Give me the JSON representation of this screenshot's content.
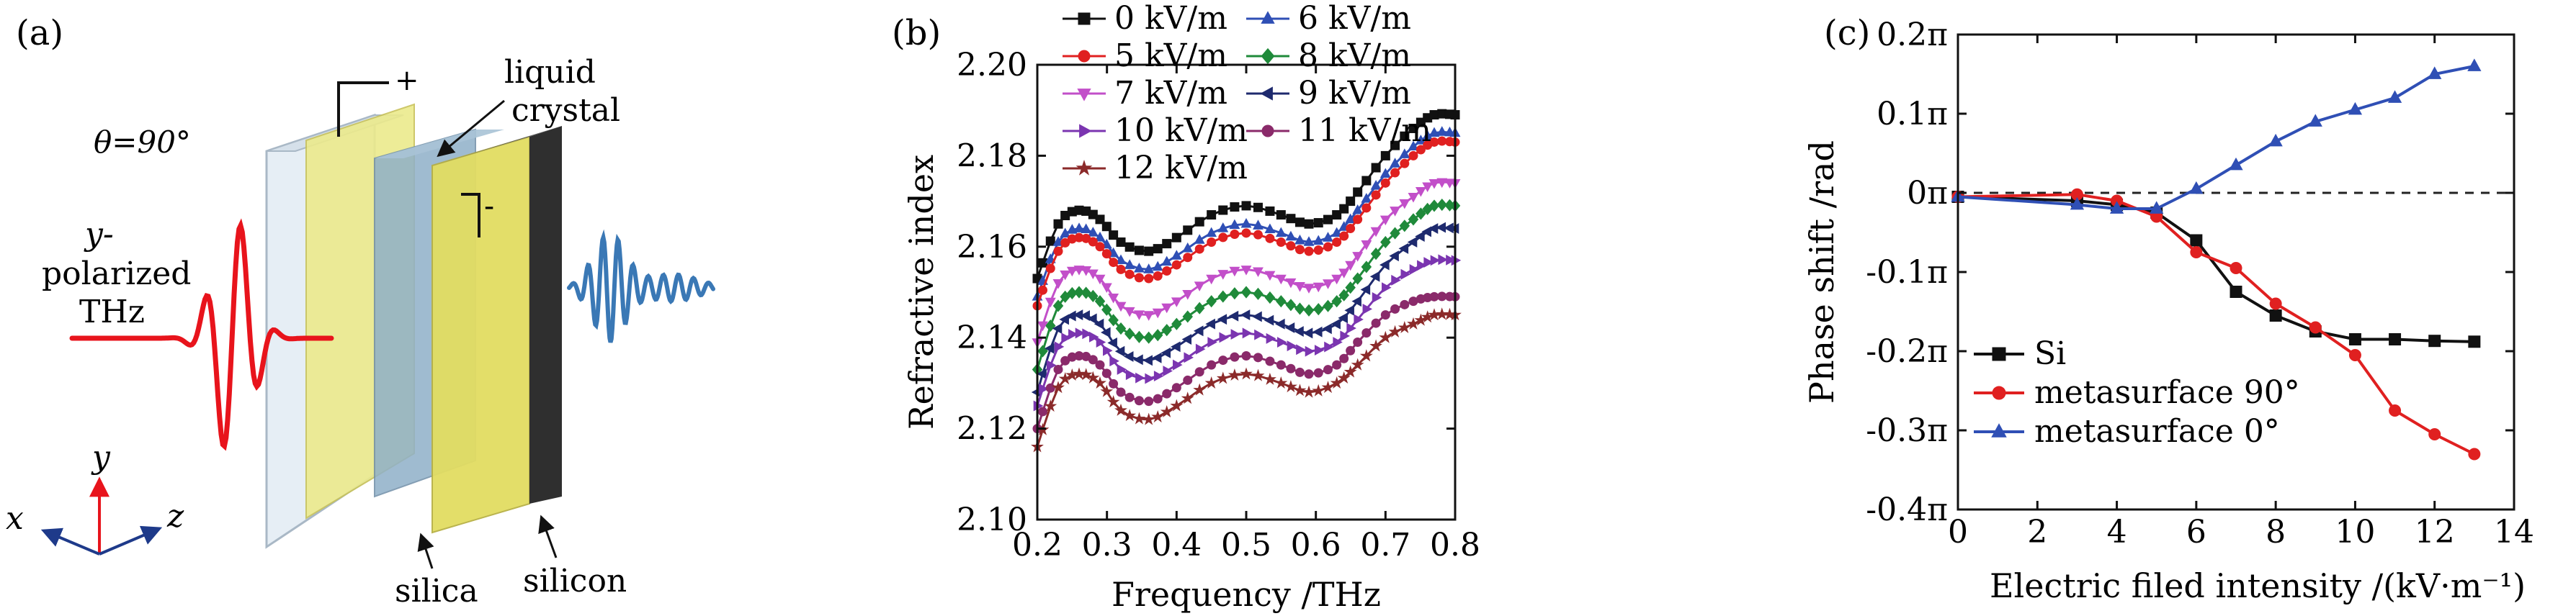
{
  "panels": {
    "a": {
      "label": "(a)",
      "theta_label": "θ=90°",
      "y_label_1": "y-",
      "y_label_2": "polarized",
      "y_label_3": "THz",
      "plus": "+",
      "minus": "-",
      "lc_label_1": "liquid",
      "lc_label_2": "crystal",
      "silica": "silica",
      "silicon": "silicon",
      "axis_x": "x",
      "axis_y": "y",
      "axis_z": "z",
      "colors": {
        "incident_wave": "#e8141c",
        "transmitted_wave": "#3a78b5",
        "electrode": "#e9e36a",
        "lc": "#8fb0c8",
        "silicon": "#3b3b3b"
      }
    },
    "b": {
      "label": "(b)"
    },
    "c": {
      "label": "(c)"
    }
  },
  "chart_data": [
    {
      "type": "line",
      "panel": "b",
      "xlabel": "Frequency /THz",
      "ylabel": "Refractive index",
      "xlim": [
        0.2,
        0.8
      ],
      "ylim": [
        2.1,
        2.2
      ],
      "xticks": [
        "0.2",
        "0.3",
        "0.4",
        "0.5",
        "0.6",
        "0.7",
        "0.8"
      ],
      "yticks": [
        "2.10",
        "2.12",
        "2.14",
        "2.16",
        "2.18",
        "2.20"
      ],
      "legend_position": "top",
      "x": [
        0.2,
        0.23,
        0.26,
        0.29,
        0.32,
        0.36,
        0.4,
        0.45,
        0.5,
        0.55,
        0.59,
        0.63,
        0.66,
        0.7,
        0.74,
        0.77,
        0.8
      ],
      "series": [
        {
          "name": "0 kV/m",
          "color": "#111111",
          "marker": "square",
          "values": [
            2.153,
            2.165,
            2.168,
            2.166,
            2.161,
            2.159,
            2.162,
            2.167,
            2.169,
            2.167,
            2.165,
            2.167,
            2.172,
            2.18,
            2.186,
            2.189,
            2.189
          ]
        },
        {
          "name": "6 kV/m",
          "color": "#2f4fb5",
          "marker": "triangle",
          "values": [
            2.149,
            2.161,
            2.164,
            2.162,
            2.157,
            2.155,
            2.158,
            2.163,
            2.165,
            2.163,
            2.161,
            2.163,
            2.168,
            2.176,
            2.182,
            2.185,
            2.185
          ]
        },
        {
          "name": "5 kV/m",
          "color": "#e02020",
          "marker": "circle",
          "values": [
            2.147,
            2.159,
            2.162,
            2.16,
            2.155,
            2.153,
            2.156,
            2.161,
            2.163,
            2.161,
            2.159,
            2.161,
            2.166,
            2.174,
            2.18,
            2.183,
            2.183
          ]
        },
        {
          "name": "8 kV/m",
          "color": "#1f8a3a",
          "marker": "diamond",
          "values": [
            2.133,
            2.147,
            2.15,
            2.148,
            2.142,
            2.14,
            2.143,
            2.148,
            2.15,
            2.148,
            2.146,
            2.148,
            2.153,
            2.161,
            2.166,
            2.169,
            2.169
          ]
        },
        {
          "name": "7 kV/m",
          "color": "#c24fc9",
          "marker": "tri-down",
          "values": [
            2.139,
            2.152,
            2.155,
            2.153,
            2.147,
            2.145,
            2.148,
            2.153,
            2.155,
            2.153,
            2.151,
            2.153,
            2.158,
            2.166,
            2.171,
            2.174,
            2.174
          ]
        },
        {
          "name": "9 kV/m",
          "color": "#1e2a6e",
          "marker": "tri-left",
          "values": [
            2.128,
            2.142,
            2.145,
            2.143,
            2.137,
            2.135,
            2.138,
            2.143,
            2.145,
            2.143,
            2.141,
            2.143,
            2.148,
            2.156,
            2.161,
            2.164,
            2.164
          ]
        },
        {
          "name": "10 kV/m",
          "color": "#7b35b0",
          "marker": "tri-right",
          "values": [
            2.125,
            2.138,
            2.141,
            2.139,
            2.133,
            2.131,
            2.134,
            2.139,
            2.141,
            2.139,
            2.137,
            2.139,
            2.144,
            2.151,
            2.155,
            2.157,
            2.157
          ]
        },
        {
          "name": "11 kV/m",
          "color": "#8a2a6a",
          "marker": "circle",
          "values": [
            2.12,
            2.133,
            2.136,
            2.134,
            2.128,
            2.126,
            2.129,
            2.134,
            2.136,
            2.134,
            2.132,
            2.134,
            2.139,
            2.145,
            2.148,
            2.149,
            2.149
          ]
        },
        {
          "name": "12 kV/m",
          "color": "#8b2a2a",
          "marker": "star",
          "values": [
            2.116,
            2.129,
            2.132,
            2.13,
            2.124,
            2.122,
            2.125,
            2.13,
            2.132,
            2.13,
            2.128,
            2.13,
            2.134,
            2.14,
            2.143,
            2.145,
            2.145
          ]
        }
      ]
    },
    {
      "type": "line",
      "panel": "c",
      "xlabel": "Electric filed intensity /(kV·m⁻¹)",
      "ylabel": "Phase shift /rad",
      "xlim": [
        0,
        14
      ],
      "ylim": [
        -0.4,
        0.2
      ],
      "y_unit": "π",
      "xticks": [
        "0",
        "2",
        "4",
        "6",
        "8",
        "10",
        "12",
        "14"
      ],
      "yticks": [
        "0.2π",
        "0.1π",
        "0π",
        "-0.1π",
        "-0.2π",
        "-0.3π",
        "-0.4π"
      ],
      "reference_line_y": 0,
      "legend_position": "bottom-left",
      "x": [
        0,
        3,
        4,
        5,
        6,
        7,
        8,
        9,
        10,
        11,
        12,
        13
      ],
      "series": [
        {
          "name": "Si",
          "color": "#111111",
          "marker": "square",
          "values": [
            -0.005,
            -0.01,
            -0.015,
            -0.025,
            -0.06,
            -0.125,
            -0.155,
            -0.175,
            -0.185,
            -0.185,
            -0.187,
            -0.188
          ]
        },
        {
          "name": "metasurface 90°",
          "color": "#e02020",
          "marker": "circle",
          "values": [
            -0.005,
            -0.002,
            -0.01,
            -0.03,
            -0.075,
            -0.095,
            -0.14,
            -0.17,
            -0.205,
            -0.275,
            -0.305,
            -0.33
          ]
        },
        {
          "name": "metasurface 0°",
          "color": "#2f4fb5",
          "marker": "triangle",
          "values": [
            -0.005,
            -0.015,
            -0.02,
            -0.02,
            0.005,
            0.035,
            0.065,
            0.09,
            0.105,
            0.12,
            0.15,
            0.16
          ]
        }
      ]
    }
  ]
}
